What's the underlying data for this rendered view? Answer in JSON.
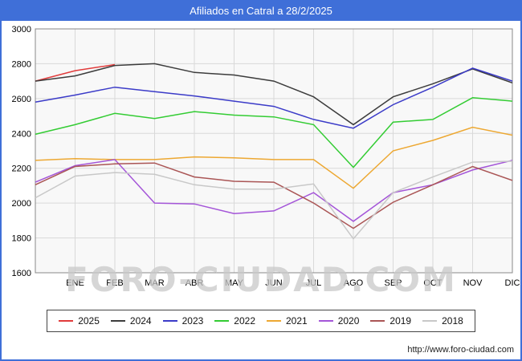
{
  "header": {
    "title": "Afiliados en Catral a 28/2/2025"
  },
  "watermark": {
    "text": "FORO-CIUDAD.COM"
  },
  "footer": {
    "link": "http://www.foro-ciudad.com"
  },
  "colors": {
    "accent_blue": "#3f6fd8",
    "plot_bg": "#f8f8f8",
    "gridline": "#d9d9d9"
  },
  "chart_data": {
    "type": "line",
    "title": "Afiliados en Catral a 28/2/2025",
    "categories": [
      "ENE",
      "FEB",
      "MAR",
      "ABR",
      "MAY",
      "JUN",
      "JUL",
      "AGO",
      "SEP",
      "OCT",
      "NOV",
      "DIC"
    ],
    "ylim": [
      1600,
      3000
    ],
    "ytick_step": 200,
    "grid": true,
    "legend_position": "bottom",
    "note_start_key": "start = value at the left plot edge (lead-in point before ENE)",
    "series": [
      {
        "name": "2025",
        "color": "#e13b3b",
        "start": 2700,
        "values": [
          2760,
          2795,
          null,
          null,
          null,
          null,
          null,
          null,
          null,
          null,
          null,
          null
        ]
      },
      {
        "name": "2024",
        "color": "#3c3c3c",
        "start": 2700,
        "values": [
          2730,
          2790,
          2800,
          2750,
          2735,
          2700,
          2610,
          2450,
          2610,
          2685,
          2770,
          2690
        ]
      },
      {
        "name": "2023",
        "color": "#3b3bc8",
        "start": 2580,
        "values": [
          2620,
          2665,
          2640,
          2615,
          2585,
          2555,
          2480,
          2430,
          2565,
          2665,
          2775,
          2700
        ]
      },
      {
        "name": "2022",
        "color": "#33cc33",
        "start": 2395,
        "values": [
          2450,
          2515,
          2485,
          2525,
          2505,
          2495,
          2450,
          2205,
          2465,
          2480,
          2605,
          2585
        ]
      },
      {
        "name": "2021",
        "color": "#eda832",
        "start": 2245,
        "values": [
          2255,
          2250,
          2250,
          2265,
          2260,
          2250,
          2250,
          2085,
          2300,
          2360,
          2435,
          2390
        ]
      },
      {
        "name": "2020",
        "color": "#a455d8",
        "start": 2120,
        "values": [
          2215,
          2250,
          2000,
          1995,
          1940,
          1955,
          2060,
          1895,
          2060,
          2105,
          2190,
          2245
        ]
      },
      {
        "name": "2019",
        "color": "#aa5555",
        "start": 2105,
        "values": [
          2210,
          2225,
          2230,
          2150,
          2125,
          2120,
          2000,
          1855,
          2005,
          2105,
          2210,
          2130
        ]
      },
      {
        "name": "2018",
        "color": "#c8c8c8",
        "start": 2030,
        "values": [
          2155,
          2175,
          2165,
          2105,
          2080,
          2080,
          2110,
          1795,
          2060,
          2150,
          2235,
          2240
        ]
      }
    ]
  }
}
